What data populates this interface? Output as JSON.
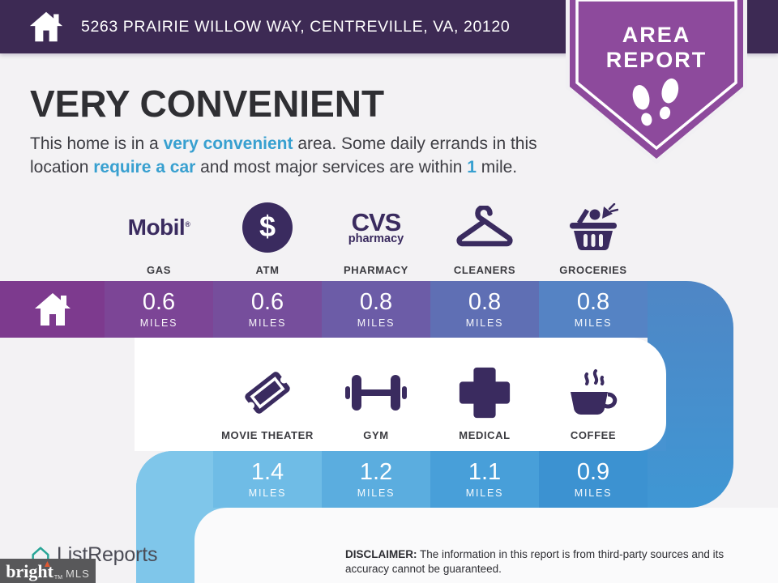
{
  "header": {
    "address": "5263 PRAIRIE WILLOW WAY, CENTREVILLE, VA, 20120"
  },
  "badge": {
    "line1": "AREA",
    "line2": "REPORT"
  },
  "main": {
    "title": "VERY CONVENIENT",
    "description_line1": [
      {
        "t": "This home is in a ",
        "h": false
      },
      {
        "t": "very convenient",
        "h": true
      },
      {
        "t": " area. Some daily errands in this",
        "h": false
      }
    ],
    "description_line2": [
      {
        "t": "location ",
        "h": false
      },
      {
        "t": "require a car",
        "h": true
      },
      {
        "t": " and most major services are within ",
        "h": false
      },
      {
        "t": "1",
        "h": true
      },
      {
        "t": " mile.",
        "h": false
      }
    ]
  },
  "amenities_row1": [
    {
      "label": "GAS",
      "brand": "Mobil",
      "brand_mark": "®"
    },
    {
      "label": "ATM",
      "symbol": "$"
    },
    {
      "label": "PHARMACY",
      "brand_top": "CVS",
      "brand_bottom": "pharmacy"
    },
    {
      "label": "CLEANERS"
    },
    {
      "label": "GROCERIES"
    }
  ],
  "amenities_row2": [
    {
      "label": "MOVIE THEATER"
    },
    {
      "label": "GYM"
    },
    {
      "label": "MEDICAL"
    },
    {
      "label": "COFFEE"
    }
  ],
  "bars": {
    "unit": "MILES",
    "row1": {
      "values": [
        "0.6",
        "0.6",
        "0.8",
        "0.8",
        "0.8"
      ],
      "home_segment_color": "#7d3a8e",
      "colors": [
        "#7c4596",
        "#764e9c",
        "#6c5ca7",
        "#5f6fb4",
        "#5583c4"
      ]
    },
    "row2": {
      "values": [
        "1.4",
        "1.2",
        "1.1",
        "0.9"
      ],
      "cap_color": "#7fc6ea",
      "colors": [
        "#6fbce6",
        "#5baddf",
        "#489fd9",
        "#3c92d1"
      ]
    }
  },
  "footer": {
    "logo_text": "ListReports",
    "bright_logo": "bright",
    "bright_tm": "TM",
    "bright_mls": "MLS",
    "disclaimer_label": "DISCLAIMER:",
    "disclaimer_text": " The information in this report is from third-party sources and its accuracy cannot be guaranteed."
  },
  "colors": {
    "topbar": "#3d2a54",
    "badge_purple": "#8d4a9c",
    "highlight_blue": "#38a0d0",
    "icon_purple": "#3a2b5f",
    "page_bg": "#f3f2f4",
    "bright_teal": "#27a596"
  },
  "chart_data": {
    "type": "table",
    "title": "VERY CONVENIENT",
    "unit": "miles",
    "rows": [
      {
        "categories": [
          "GAS",
          "ATM",
          "PHARMACY",
          "CLEANERS",
          "GROCERIES"
        ],
        "values": [
          0.6,
          0.6,
          0.8,
          0.8,
          0.8
        ]
      },
      {
        "categories": [
          "MOVIE THEATER",
          "GYM",
          "MEDICAL",
          "COFFEE"
        ],
        "values": [
          1.4,
          1.2,
          1.1,
          0.9
        ]
      }
    ]
  }
}
